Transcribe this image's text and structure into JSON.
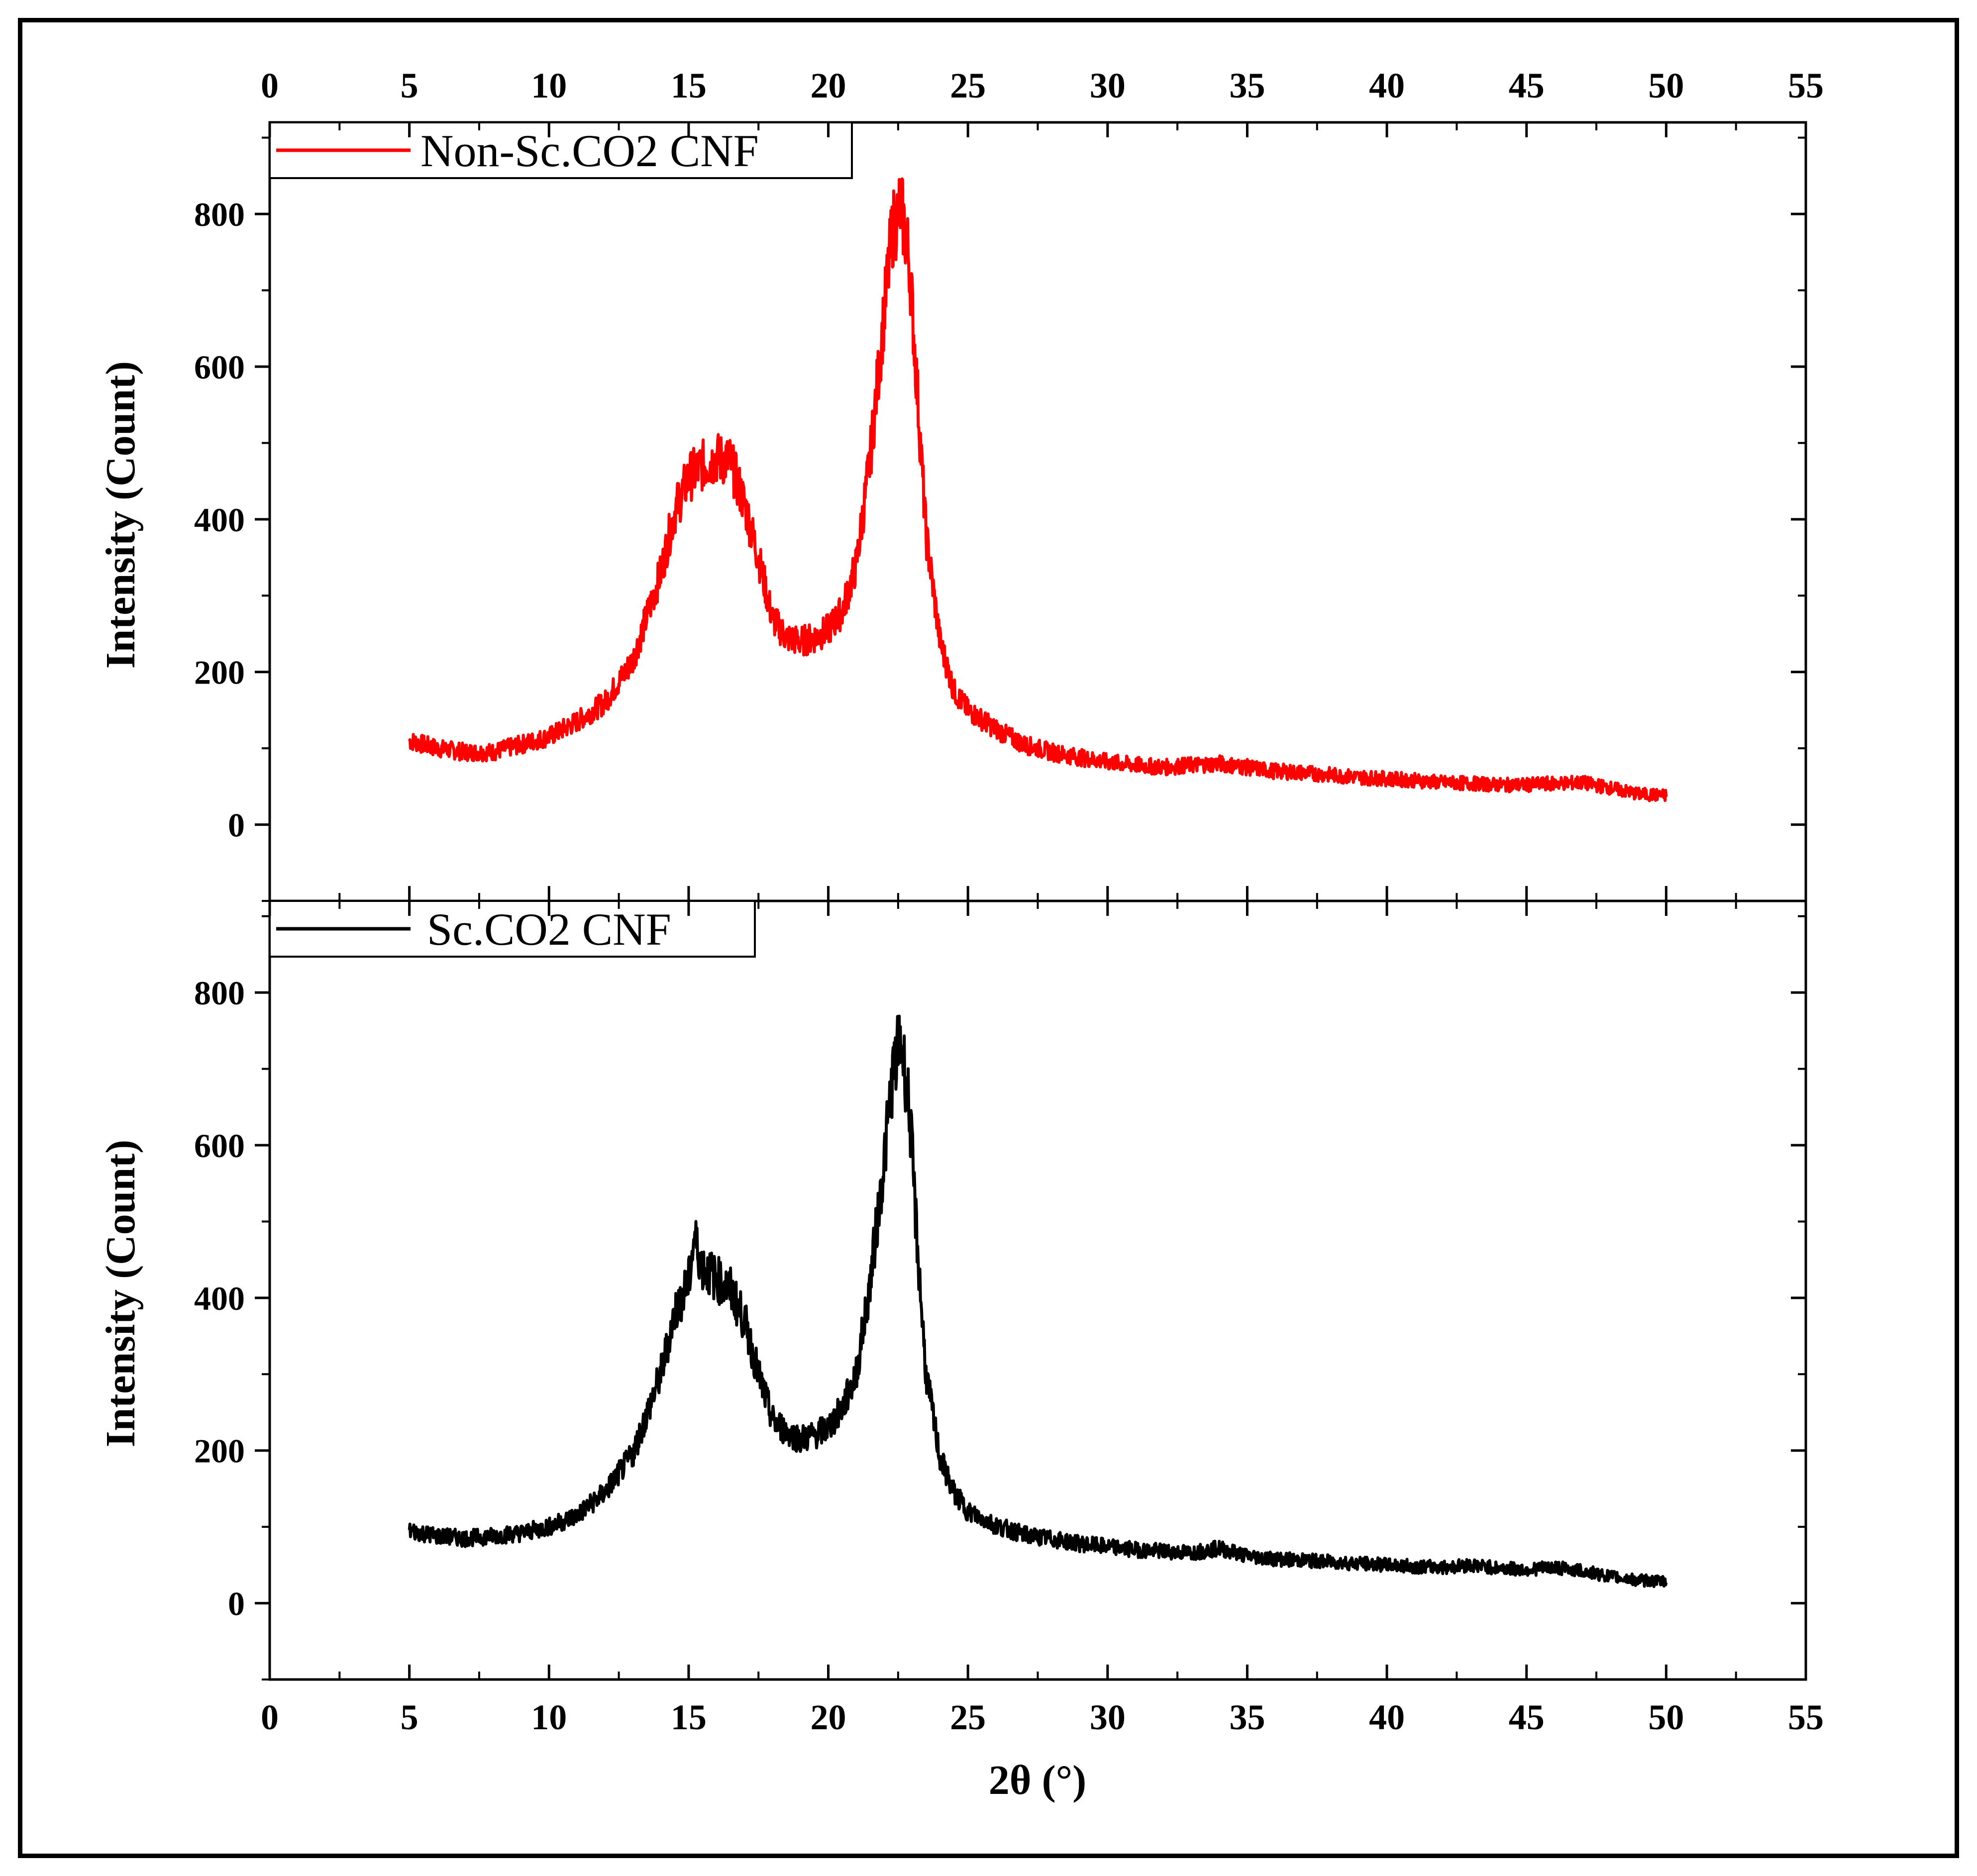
{
  "chart_data": {
    "type": "line",
    "x_axis": {
      "label": "2θ (°)",
      "range": [
        0,
        55
      ],
      "ticks": [
        "0",
        "5",
        "10",
        "15",
        "20",
        "25",
        "30",
        "35",
        "40",
        "45",
        "50",
        "55"
      ],
      "position": "top and bottom"
    },
    "panels": [
      {
        "ylabel": "Intensity (Count)",
        "ylim": [
          -100,
          920
        ],
        "yticks": [
          "0",
          "200",
          "400",
          "600",
          "800"
        ],
        "legend": "top-left",
        "series": [
          {
            "name": "Non-Sc.CO2 CNF",
            "color": "#ff0000",
            "x": [
              5,
              6,
              7,
              8,
              9,
              10,
              11,
              12,
              13,
              14,
              14.5,
              15,
              15.5,
              16,
              16.5,
              17,
              17.5,
              18,
              18.5,
              19,
              19.5,
              20,
              20.5,
              21,
              21.5,
              22,
              22.3,
              22.6,
              22.9,
              23.2,
              23.5,
              24,
              24.5,
              25,
              26,
              27,
              28,
              29,
              30,
              31,
              32,
              33,
              34,
              35,
              36,
              37,
              38,
              39,
              40,
              41,
              42,
              43,
              44,
              45,
              46,
              47,
              48,
              49,
              50
            ],
            "values": [
              110,
              100,
              95,
              95,
              105,
              115,
              135,
              160,
              215,
              330,
              410,
              455,
              470,
              480,
              475,
              420,
              350,
              270,
              245,
              240,
              245,
              255,
              280,
              340,
              480,
              670,
              780,
              810,
              740,
              560,
              380,
              240,
              175,
              150,
              125,
              105,
              95,
              88,
              82,
              78,
              75,
              78,
              80,
              75,
              70,
              68,
              65,
              62,
              60,
              58,
              55,
              54,
              52,
              52,
              54,
              55,
              48,
              40,
              38
            ]
          }
        ]
      },
      {
        "ylabel": "Intensity (Count)",
        "ylim": [
          -100,
          920
        ],
        "yticks": [
          "0",
          "200",
          "400",
          "600",
          "800"
        ],
        "legend": "top-left",
        "series": [
          {
            "name": "Sc.CO2 CNF",
            "color": "#000000",
            "x": [
              5,
              6,
              7,
              8,
              9,
              10,
              11,
              12,
              13,
              14,
              14.5,
              15,
              15.2,
              15.5,
              16,
              16.5,
              17,
              17.5,
              18,
              18.5,
              19,
              19.5,
              20,
              20.5,
              21,
              21.5,
              22,
              22.3,
              22.6,
              22.9,
              23.2,
              23.5,
              24,
              24.5,
              25,
              26,
              27,
              28,
              29,
              30,
              31,
              32,
              33,
              34,
              35,
              36,
              37,
              38,
              39,
              40,
              41,
              42,
              43,
              44,
              45,
              46,
              47,
              48,
              49,
              50
            ],
            "values": [
              95,
              88,
              85,
              88,
              92,
              100,
              115,
              145,
              195,
              300,
              380,
              420,
              480,
              440,
              425,
              410,
              370,
              300,
              240,
              225,
              215,
              220,
              230,
              255,
              300,
              420,
              580,
              690,
              740,
              650,
              460,
              300,
              190,
              145,
              120,
              102,
              90,
              84,
              78,
              74,
              70,
              68,
              66,
              72,
              62,
              58,
              56,
              54,
              52,
              50,
              48,
              47,
              50,
              46,
              44,
              47,
              42,
              35,
              30,
              28
            ]
          }
        ]
      }
    ]
  }
}
